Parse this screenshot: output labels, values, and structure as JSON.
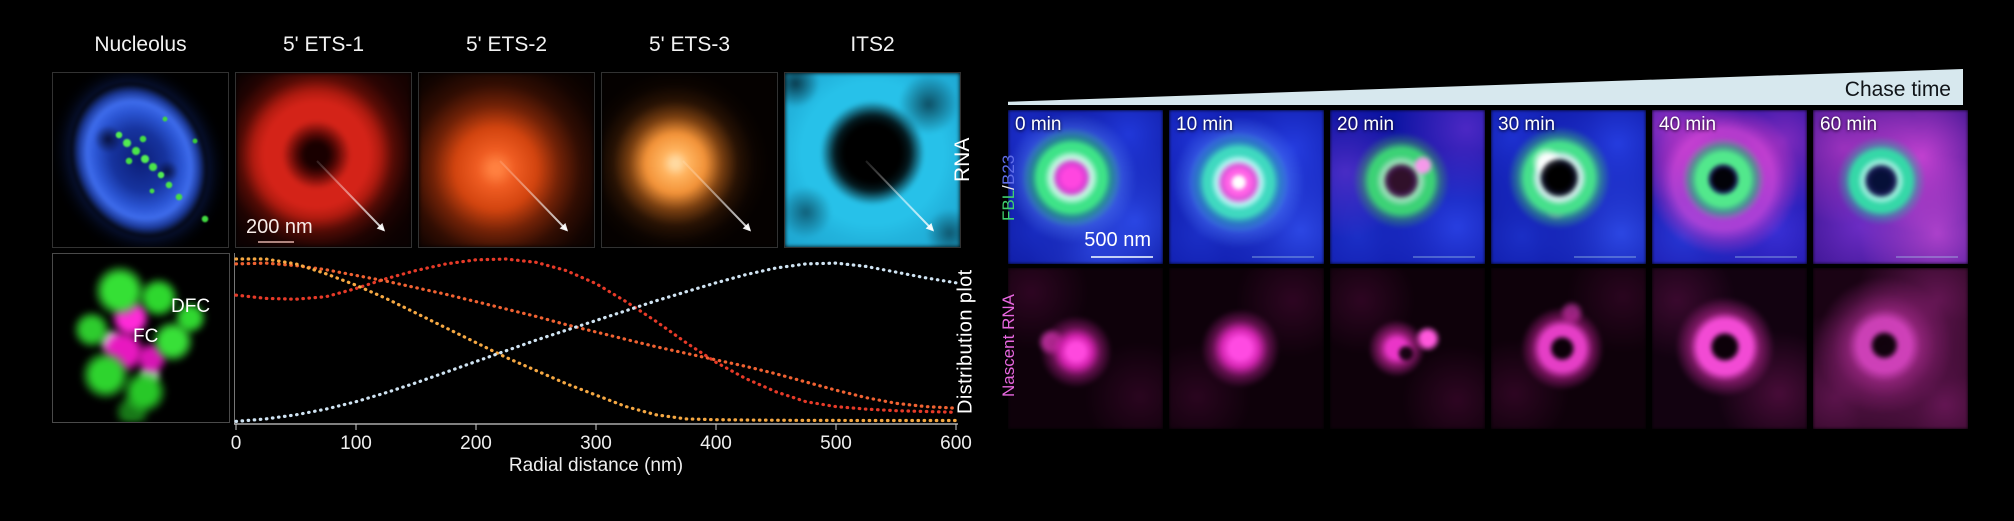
{
  "left_figure": {
    "columns": [
      "Nucleolus",
      "5' ETS-1",
      "5' ETS-2",
      "5' ETS-3",
      "ITS2"
    ],
    "row_label_top": "RNA",
    "row_label_bottom": "Distribution plot",
    "scale_bar_label": "200 nm",
    "nucleolus_inset": {
      "dfc_label": "DFC",
      "fc_label": "FC"
    }
  },
  "chart_data": {
    "type": "line",
    "style": "dotted",
    "title": "",
    "xlabel": "Radial distance (nm)",
    "ylabel": "",
    "xlim": [
      0,
      600
    ],
    "ylim": [
      0,
      1.05
    ],
    "x_ticks": [
      0,
      100,
      200,
      300,
      400,
      500,
      600
    ],
    "grid": false,
    "legend": "none",
    "x": [
      0,
      25,
      50,
      75,
      100,
      125,
      150,
      175,
      200,
      225,
      250,
      275,
      300,
      325,
      350,
      375,
      400,
      425,
      450,
      475,
      500,
      525,
      550,
      575,
      600
    ],
    "series": [
      {
        "name": "5' ETS-1",
        "color": "#e63a28",
        "values": [
          0.78,
          0.76,
          0.755,
          0.77,
          0.82,
          0.88,
          0.93,
          0.97,
          0.995,
          1.0,
          0.98,
          0.93,
          0.85,
          0.74,
          0.62,
          0.49,
          0.37,
          0.27,
          0.19,
          0.13,
          0.1,
          0.085,
          0.075,
          0.07,
          0.065
        ]
      },
      {
        "name": "5' ETS-2",
        "color": "#f06232",
        "values": [
          0.97,
          0.975,
          0.96,
          0.935,
          0.9,
          0.865,
          0.825,
          0.785,
          0.74,
          0.695,
          0.65,
          0.6,
          0.555,
          0.51,
          0.465,
          0.425,
          0.385,
          0.345,
          0.3,
          0.25,
          0.2,
          0.155,
          0.12,
          0.1,
          0.09
        ]
      },
      {
        "name": "5' ETS-3",
        "color": "#f5a843",
        "values": [
          1.0,
          1.0,
          0.97,
          0.91,
          0.84,
          0.76,
          0.67,
          0.58,
          0.49,
          0.4,
          0.32,
          0.24,
          0.17,
          0.1,
          0.05,
          0.025,
          0.02,
          0.018,
          0.017,
          0.016,
          0.016,
          0.015,
          0.015,
          0.015,
          0.015
        ]
      },
      {
        "name": "ITS2",
        "color": "#cfe3f2",
        "values": [
          0.01,
          0.025,
          0.05,
          0.085,
          0.13,
          0.185,
          0.245,
          0.31,
          0.375,
          0.44,
          0.505,
          0.565,
          0.625,
          0.685,
          0.745,
          0.8,
          0.855,
          0.905,
          0.945,
          0.97,
          0.975,
          0.955,
          0.92,
          0.885,
          0.855
        ]
      }
    ]
  },
  "right_figure": {
    "header_label": "Chase time",
    "header_bg": "#d7e8ee",
    "timepoints": [
      "0 min",
      "10 min",
      "20 min",
      "30 min",
      "40 min",
      "60 min"
    ],
    "scale_bar_label": "500 nm",
    "row_label_top": {
      "part1": "FBL",
      "part1_color": "#3fcf6e",
      "separator": " / ",
      "separator_color": "#e8e8e8",
      "part2": "B23",
      "part2_color": "#5f6de8"
    },
    "row_label_bottom": {
      "text": "Nascent RNA",
      "color": "#e868e0"
    }
  }
}
